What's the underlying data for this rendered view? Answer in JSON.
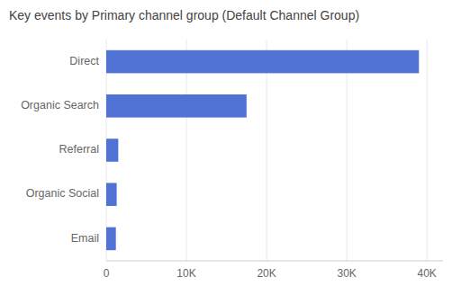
{
  "chart_data": {
    "type": "bar",
    "orientation": "horizontal",
    "title": "Key events by Primary channel group (Default Channel Group)",
    "categories": [
      "Email",
      "Organic Social",
      "Referral",
      "Organic Search",
      "Direct"
    ],
    "values": [
      1200,
      1300,
      1500,
      17500,
      39000
    ],
    "color": "#4f72d4",
    "xlim": [
      0,
      42000
    ],
    "xticks": [
      0,
      {
        "value": 10000,
        "label": "10K"
      },
      {
        "value": 20000,
        "label": "20K"
      },
      {
        "value": 30000,
        "label": "30K"
      },
      {
        "value": 40000,
        "label": "40K"
      }
    ],
    "grid": true
  }
}
